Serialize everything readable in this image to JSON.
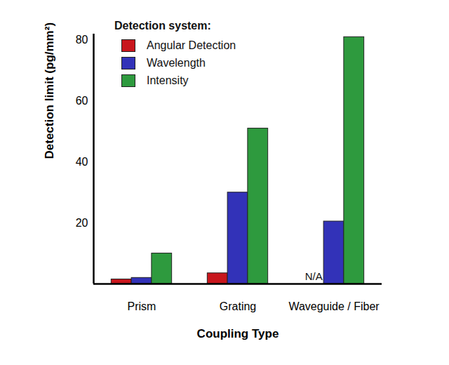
{
  "chart_data": {
    "type": "bar",
    "x_label": "Coupling Type",
    "y_label": "Detection limit (pg/mm²)",
    "legend_title": "Detection system:",
    "categories": [
      "Prism",
      "Grating",
      "Waveguide / Fiber"
    ],
    "series": [
      {
        "name": "Angular Detection",
        "color": "#c8161d",
        "values": [
          1.5,
          3.5,
          null
        ]
      },
      {
        "name": "Wavelength",
        "color": "#3232b8",
        "values": [
          2,
          30,
          20.5
        ]
      },
      {
        "name": "Intensity",
        "color": "#2e9a3e",
        "values": [
          10,
          51,
          81
        ]
      }
    ],
    "annotations": [
      {
        "text": "N/A",
        "category": "Waveguide / Fiber",
        "series": "Angular Detection"
      }
    ],
    "ylim": [
      0,
      82
    ],
    "yticks": [
      20,
      40,
      60,
      80
    ],
    "grid": false,
    "legend": "top-left"
  }
}
